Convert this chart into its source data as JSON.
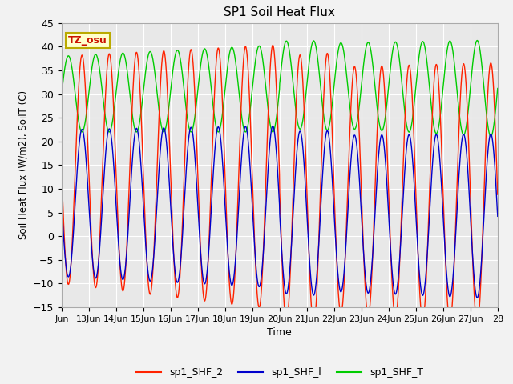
{
  "title": "SP1 Soil Heat Flux",
  "xlabel": "Time",
  "ylabel": "Soil Heat Flux (W/m2), SoilT (C)",
  "ylim": [
    -15,
    45
  ],
  "xlim_start_days": 12.0,
  "xlim_end_days": 28.0,
  "annotation_text": "TZ_osu",
  "annotation_color": "#cc1100",
  "annotation_bg": "#ffffcc",
  "annotation_border": "#bbaa00",
  "bg_color": "#e8e8e8",
  "fig_bg_color": "#f2f2f2",
  "grid_color": "#ffffff",
  "line_color_red": "#ff2200",
  "line_color_blue": "#0000cc",
  "line_color_green": "#00cc00",
  "legend_labels": [
    "sp1_SHF_2",
    "sp1_SHF_l",
    "sp1_SHF_T"
  ],
  "tick_labels": [
    "Jun",
    "13Jun",
    "14Jun",
    "15Jun",
    "16Jun",
    "17Jun",
    "18Jun",
    "19Jun",
    "20Jun",
    "21Jun",
    "22Jun",
    "23Jun",
    "24Jun",
    "25Jun",
    "26Jun",
    "27Jun",
    "28"
  ],
  "tick_positions": [
    12,
    13,
    14,
    15,
    16,
    17,
    18,
    19,
    20,
    21,
    22,
    23,
    24,
    25,
    26,
    27,
    28
  ]
}
